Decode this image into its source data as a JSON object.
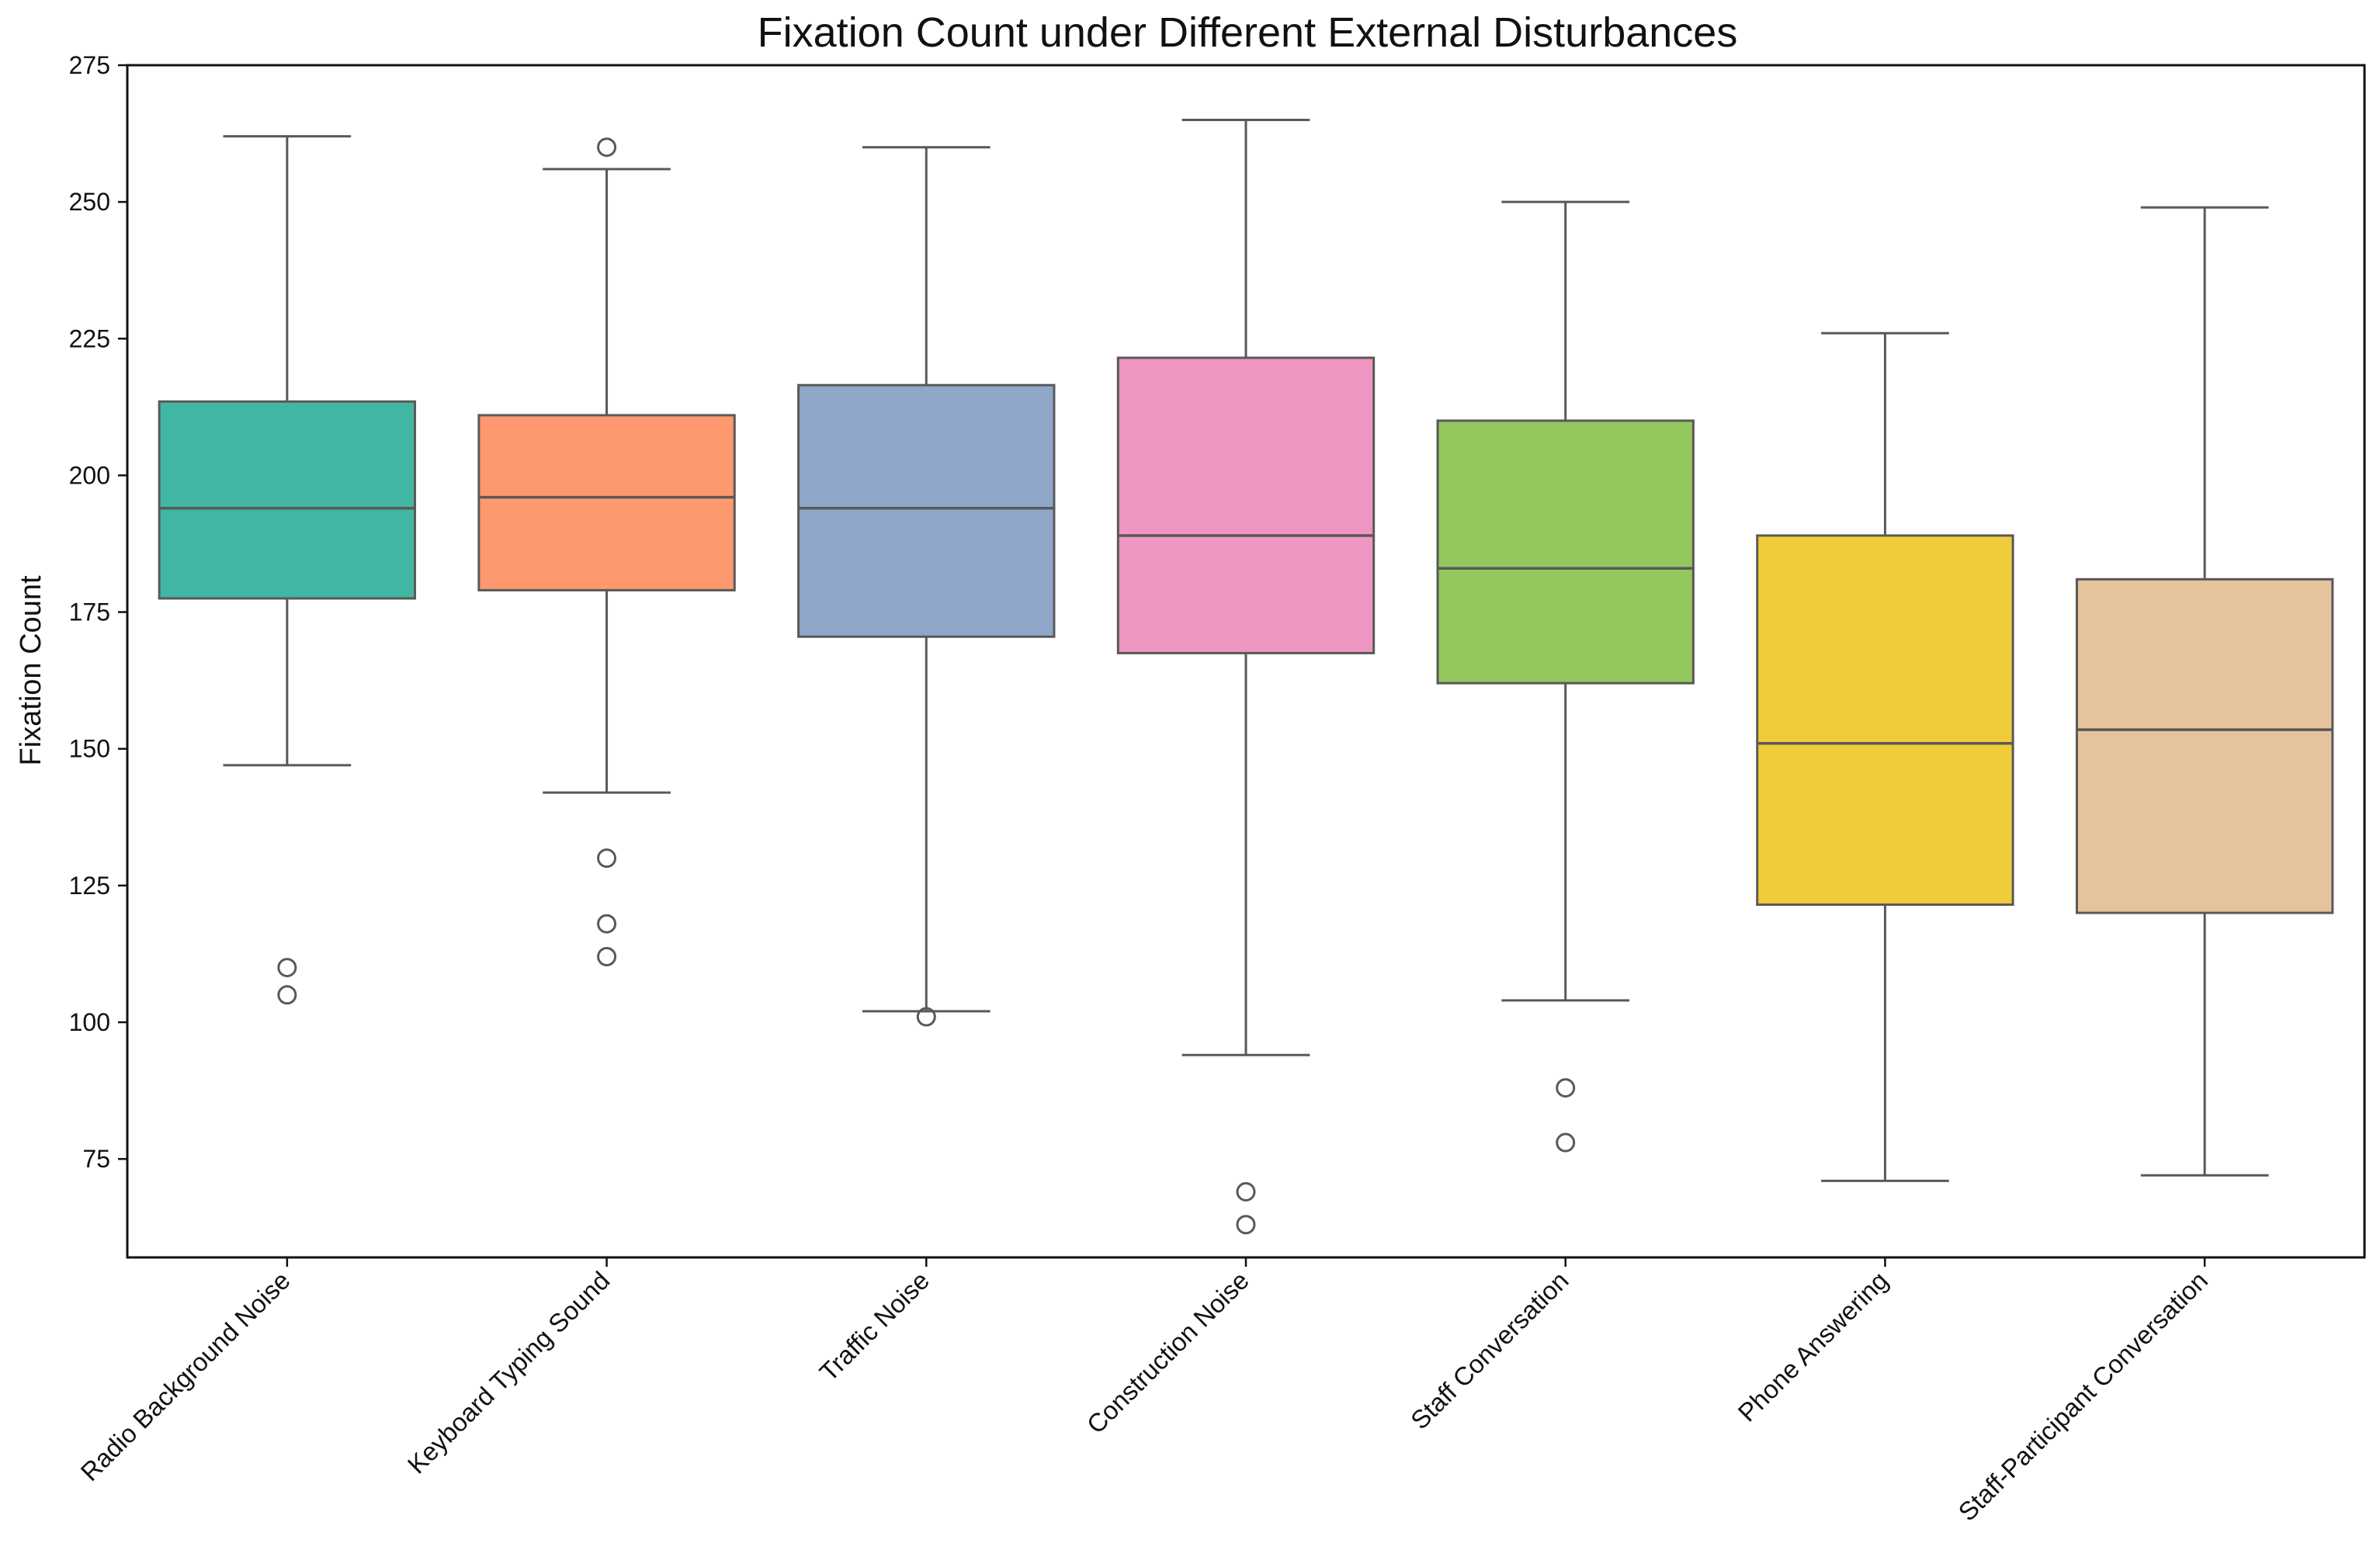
{
  "chart_data": {
    "type": "box",
    "title": "Fixation Count under Different External Disturbances",
    "xlabel": "",
    "ylabel": "Fixation Count",
    "ylim": [
      57,
      275
    ],
    "yticks": [
      75,
      100,
      125,
      150,
      175,
      200,
      225,
      250,
      275
    ],
    "grid": false,
    "categories": [
      "Radio Background Noise",
      "Keyboard Typing Sound",
      "Traffic Noise",
      "Construction Noise",
      "Staff Conversation",
      "Phone Answering",
      "Staff-Participant Conversation"
    ],
    "boxes": [
      {
        "category": "Radio Background Noise",
        "color": "#41b7a3",
        "whisker_low": 147,
        "q1": 177.5,
        "median": 194,
        "q3": 213.5,
        "whisker_high": 262,
        "outliers": [
          110,
          105
        ]
      },
      {
        "category": "Keyboard Typing Sound",
        "color": "#fd986f",
        "whisker_low": 142,
        "q1": 179,
        "median": 196,
        "q3": 211,
        "whisker_high": 256,
        "outliers": [
          260,
          130,
          118,
          112
        ]
      },
      {
        "category": "Traffic Noise",
        "color": "#8fa6c8",
        "whisker_low": 102,
        "q1": 170.5,
        "median": 194,
        "q3": 216.5,
        "whisker_high": 260,
        "outliers": [
          101
        ]
      },
      {
        "category": "Construction Noise",
        "color": "#f096c2",
        "whisker_low": 94,
        "q1": 167.5,
        "median": 189,
        "q3": 221.5,
        "whisker_high": 265,
        "outliers": [
          69,
          63
        ]
      },
      {
        "category": "Staff Conversation",
        "color": "#92c85e",
        "whisker_low": 104,
        "q1": 162,
        "median": 183,
        "q3": 210,
        "whisker_high": 250,
        "outliers": [
          88,
          78
        ]
      },
      {
        "category": "Phone Answering",
        "color": "#f0cb3a",
        "whisker_low": 71,
        "q1": 121.5,
        "median": 151,
        "q3": 189,
        "whisker_high": 226,
        "outliers": []
      },
      {
        "category": "Staff-Participant Conversation",
        "color": "#e5c39c",
        "whisker_low": 72,
        "q1": 120,
        "median": 153.5,
        "q3": 181,
        "whisker_high": 249,
        "outliers": []
      }
    ]
  }
}
